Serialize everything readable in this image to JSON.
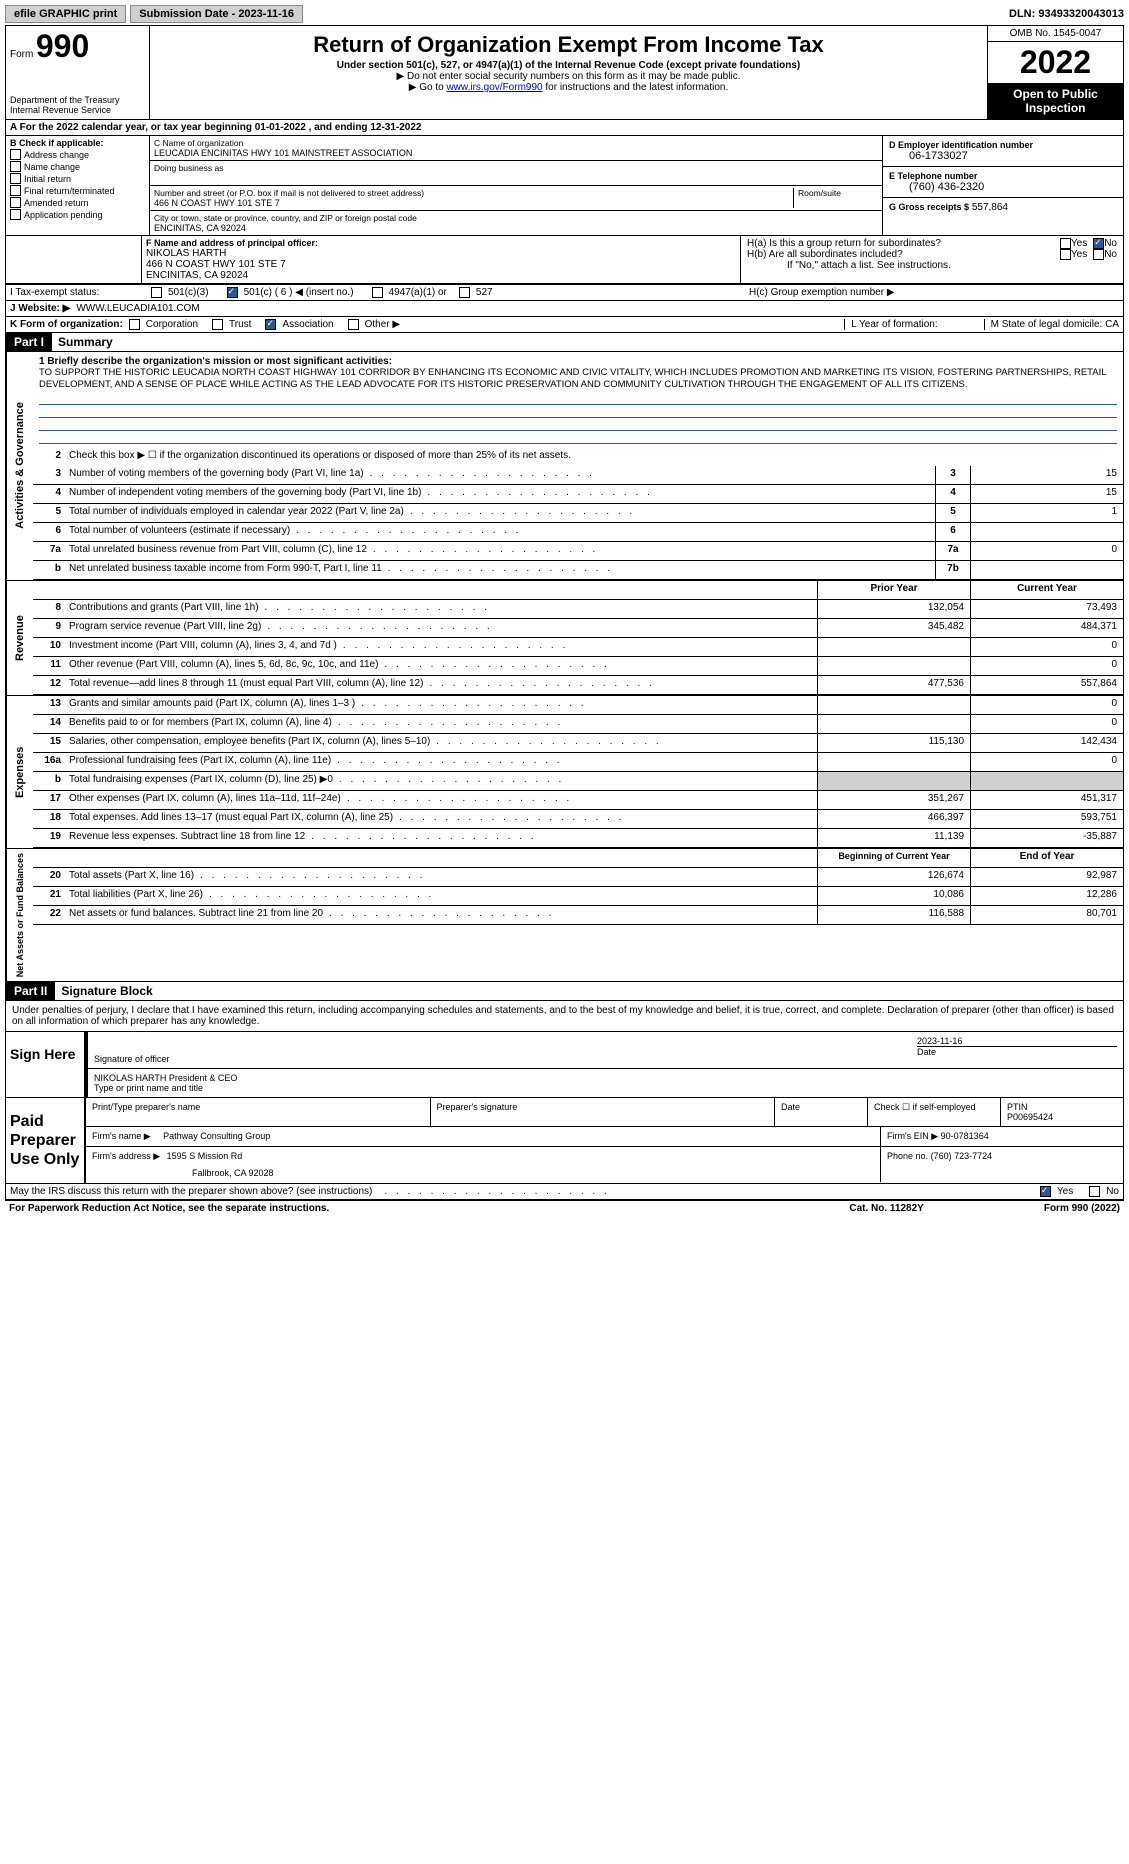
{
  "topbar": {
    "efile": "efile GRAPHIC print",
    "submission": "Submission Date - 2023-11-16",
    "dln": "DLN: 93493320043013"
  },
  "header": {
    "form_prefix": "Form",
    "form_number": "990",
    "title": "Return of Organization Exempt From Income Tax",
    "subtitle": "Under section 501(c), 527, or 4947(a)(1) of the Internal Revenue Code (except private foundations)",
    "note1": "▶ Do not enter social security numbers on this form as it may be made public.",
    "note2_pre": "▶ Go to ",
    "note2_link": "www.irs.gov/Form990",
    "note2_post": " for instructions and the latest information.",
    "dept": "Department of the Treasury",
    "dept2": "Internal Revenue Service",
    "omb": "OMB No. 1545-0047",
    "year": "2022",
    "inspect": "Open to Public Inspection"
  },
  "row_a": "A For the 2022 calendar year, or tax year beginning 01-01-2022   , and ending 12-31-2022",
  "section_b": {
    "label": "B Check if applicable:",
    "items": [
      "Address change",
      "Name change",
      "Initial return",
      "Final return/terminated",
      "Amended return",
      "Application pending"
    ]
  },
  "section_c": {
    "name_label": "C Name of organization",
    "name": "LEUCADIA ENCINITAS HWY 101 MAINSTREET ASSOCIATION",
    "dba_label": "Doing business as",
    "street_label": "Number and street (or P.O. box if mail is not delivered to street address)",
    "room_label": "Room/suite",
    "street": "466 N COAST HWY 101 STE 7",
    "city_label": "City or town, state or province, country, and ZIP or foreign postal code",
    "city": "ENCINITAS, CA  92024"
  },
  "section_d": {
    "label": "D Employer identification number",
    "value": "06-1733027"
  },
  "section_e": {
    "label": "E Telephone number",
    "value": "(760) 436-2320"
  },
  "section_g": {
    "label": "G Gross receipts $",
    "value": "557,864"
  },
  "section_f": {
    "label": "F  Name and address of principal officer:",
    "name": "NIKOLAS HARTH",
    "street": "466 N COAST HWY 101 STE 7",
    "city": "ENCINITAS, CA  92024"
  },
  "section_h": {
    "ha": "H(a)  Is this a group return for subordinates?",
    "hb": "H(b)  Are all subordinates included?",
    "hb_note": "If \"No,\" attach a list. See instructions.",
    "hc": "H(c)  Group exemption number ▶",
    "yes": "Yes",
    "no": "No"
  },
  "row_i": {
    "label": "I  Tax-exempt status:",
    "opts": [
      "501(c)(3)",
      "501(c) ( 6 ) ◀ (insert no.)",
      "4947(a)(1) or",
      "527"
    ]
  },
  "row_j": {
    "label": "J  Website: ▶",
    "value": "WWW.LEUCADIA101.COM"
  },
  "row_k": {
    "label": "K Form of organization:",
    "opts": [
      "Corporation",
      "Trust",
      "Association",
      "Other ▶"
    ]
  },
  "row_l": {
    "label": "L Year of formation:"
  },
  "row_m": {
    "label": "M State of legal domicile: CA"
  },
  "part1": {
    "header": "Part I",
    "title": "Summary"
  },
  "mission": {
    "label": "1  Briefly describe the organization's mission or most significant activities:",
    "text": "TO SUPPORT THE HISTORIC LEUCADIA NORTH COAST HIGHWAY 101 CORRIDOR BY ENHANCING ITS ECONOMIC AND CIVIC VITALITY, WHICH INCLUDES PROMOTION AND MARKETING ITS VISION, FOSTERING PARTNERSHIPS, RETAIL DEVELOPMENT, AND A SENSE OF PLACE WHILE ACTING AS THE LEAD ADVOCATE FOR ITS HISTORIC PRESERVATION AND COMMUNITY CULTIVATION THROUGH THE ENGAGEMENT OF ALL ITS CITIZENS."
  },
  "governance_rows": [
    {
      "n": "2",
      "desc": "Check this box ▶ ☐  if the organization discontinued its operations or disposed of more than 25% of its net assets.",
      "cell": "",
      "val": ""
    },
    {
      "n": "3",
      "desc": "Number of voting members of the governing body (Part VI, line 1a)",
      "cell": "3",
      "val": "15"
    },
    {
      "n": "4",
      "desc": "Number of independent voting members of the governing body (Part VI, line 1b)",
      "cell": "4",
      "val": "15"
    },
    {
      "n": "5",
      "desc": "Total number of individuals employed in calendar year 2022 (Part V, line 2a)",
      "cell": "5",
      "val": "1"
    },
    {
      "n": "6",
      "desc": "Total number of volunteers (estimate if necessary)",
      "cell": "6",
      "val": ""
    },
    {
      "n": "7a",
      "desc": "Total unrelated business revenue from Part VIII, column (C), line 12",
      "cell": "7a",
      "val": "0"
    },
    {
      "n": "b",
      "desc": "Net unrelated business taxable income from Form 990-T, Part I, line 11",
      "cell": "7b",
      "val": ""
    }
  ],
  "rev_header": {
    "prior": "Prior Year",
    "current": "Current Year"
  },
  "revenue_rows": [
    {
      "n": "8",
      "desc": "Contributions and grants (Part VIII, line 1h)",
      "prior": "132,054",
      "curr": "73,493"
    },
    {
      "n": "9",
      "desc": "Program service revenue (Part VIII, line 2g)",
      "prior": "345,482",
      "curr": "484,371"
    },
    {
      "n": "10",
      "desc": "Investment income (Part VIII, column (A), lines 3, 4, and 7d )",
      "prior": "",
      "curr": "0"
    },
    {
      "n": "11",
      "desc": "Other revenue (Part VIII, column (A), lines 5, 6d, 8c, 9c, 10c, and 11e)",
      "prior": "",
      "curr": "0"
    },
    {
      "n": "12",
      "desc": "Total revenue—add lines 8 through 11 (must equal Part VIII, column (A), line 12)",
      "prior": "477,536",
      "curr": "557,864"
    }
  ],
  "expense_rows": [
    {
      "n": "13",
      "desc": "Grants and similar amounts paid (Part IX, column (A), lines 1–3 )",
      "prior": "",
      "curr": "0"
    },
    {
      "n": "14",
      "desc": "Benefits paid to or for members (Part IX, column (A), line 4)",
      "prior": "",
      "curr": "0"
    },
    {
      "n": "15",
      "desc": "Salaries, other compensation, employee benefits (Part IX, column (A), lines 5–10)",
      "prior": "115,130",
      "curr": "142,434"
    },
    {
      "n": "16a",
      "desc": "Professional fundraising fees (Part IX, column (A), line 11e)",
      "prior": "",
      "curr": "0"
    },
    {
      "n": "b",
      "desc": "Total fundraising expenses (Part IX, column (D), line 25) ▶0",
      "prior": "shaded",
      "curr": "shaded"
    },
    {
      "n": "17",
      "desc": "Other expenses (Part IX, column (A), lines 11a–11d, 11f–24e)",
      "prior": "351,267",
      "curr": "451,317"
    },
    {
      "n": "18",
      "desc": "Total expenses. Add lines 13–17 (must equal Part IX, column (A), line 25)",
      "prior": "466,397",
      "curr": "593,751"
    },
    {
      "n": "19",
      "desc": "Revenue less expenses. Subtract line 18 from line 12",
      "prior": "11,139",
      "curr": "-35,887"
    }
  ],
  "net_header": {
    "begin": "Beginning of Current Year",
    "end": "End of Year"
  },
  "net_rows": [
    {
      "n": "20",
      "desc": "Total assets (Part X, line 16)",
      "prior": "126,674",
      "curr": "92,987"
    },
    {
      "n": "21",
      "desc": "Total liabilities (Part X, line 26)",
      "prior": "10,086",
      "curr": "12,286"
    },
    {
      "n": "22",
      "desc": "Net assets or fund balances. Subtract line 21 from line 20",
      "prior": "116,588",
      "curr": "80,701"
    }
  ],
  "vertical_labels": {
    "governance": "Activities & Governance",
    "revenue": "Revenue",
    "expenses": "Expenses",
    "netassets": "Net Assets or Fund Balances"
  },
  "part2": {
    "header": "Part II",
    "title": "Signature Block"
  },
  "sig_declaration": "Under penalties of perjury, I declare that I have examined this return, including accompanying schedules and statements, and to the best of my knowledge and belief, it is true, correct, and complete. Declaration of preparer (other than officer) is based on all information of which preparer has any knowledge.",
  "sign_here": {
    "label": "Sign Here",
    "sig_label": "Signature of officer",
    "date": "2023-11-16",
    "date_label": "Date",
    "name": "NIKOLAS HARTH  President & CEO",
    "name_label": "Type or print name and title"
  },
  "preparer": {
    "label": "Paid Preparer Use Only",
    "name_label": "Print/Type preparer's name",
    "sig_label": "Preparer's signature",
    "date_label": "Date",
    "check_label": "Check ☐ if self-employed",
    "ptin_label": "PTIN",
    "ptin": "P00695424",
    "firm_label": "Firm's name   ▶",
    "firm": "Pathway Consulting Group",
    "ein_label": "Firm's EIN ▶",
    "ein": "90-0781364",
    "addr_label": "Firm's address ▶",
    "addr": "1595 S Mission Rd",
    "addr2": "Fallbrook, CA  92028",
    "phone_label": "Phone no.",
    "phone": "(760) 723-7724"
  },
  "discuss": {
    "text": "May the IRS discuss this return with the preparer shown above? (see instructions)",
    "yes": "Yes",
    "no": "No"
  },
  "footer": {
    "left": "For Paperwork Reduction Act Notice, see the separate instructions.",
    "center": "Cat. No. 11282Y",
    "right": "Form 990 (2022)"
  }
}
